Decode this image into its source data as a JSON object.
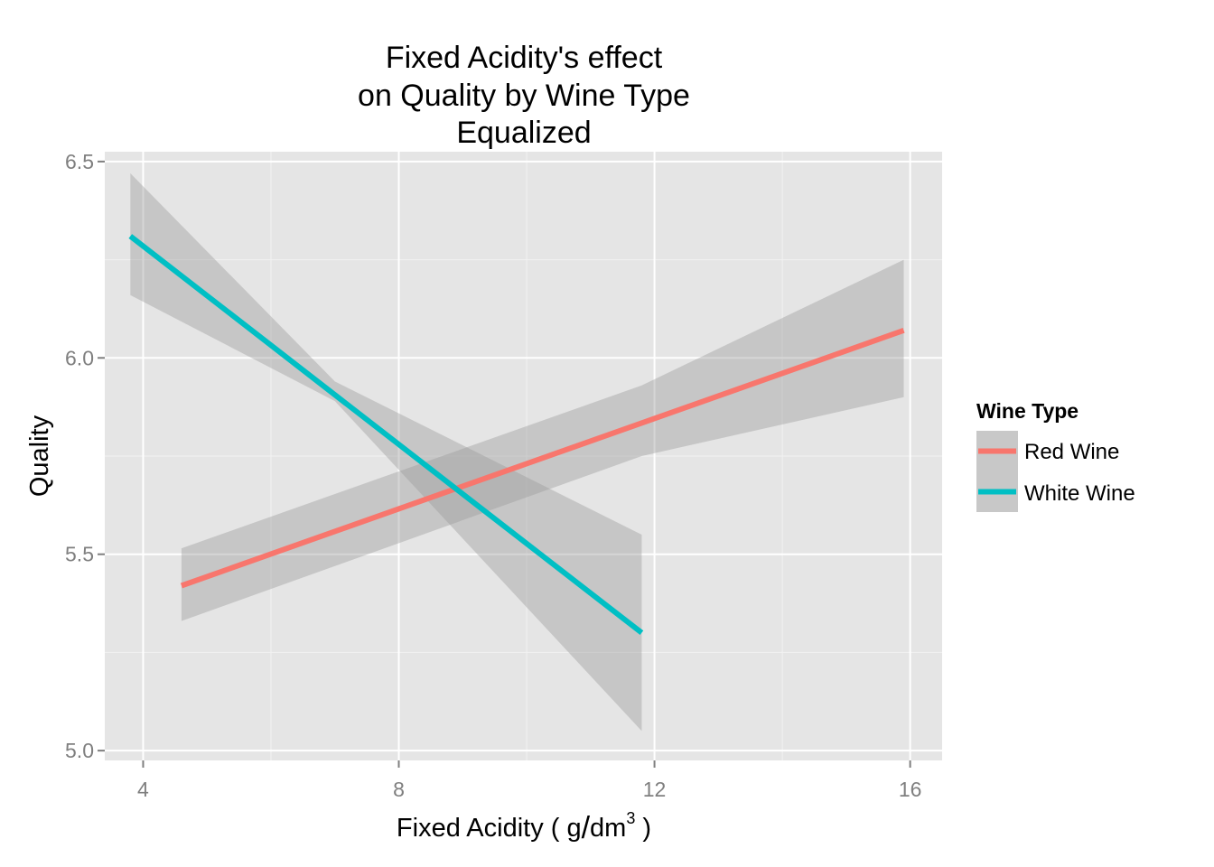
{
  "chart_data": {
    "type": "line",
    "title_lines": [
      "Fixed Acidity's effect",
      "on Quality by Wine Type",
      "Equalized"
    ],
    "xlabel_prefix": "Fixed Acidity ( g",
    "xlabel_slash": "/",
    "xlabel_unit": "dm",
    "xlabel_sup": "3",
    "xlabel_suffix": " )",
    "ylabel": "Quality",
    "xlim": [
      3.4,
      16.5
    ],
    "ylim": [
      4.975,
      6.525
    ],
    "x_ticks": [
      4,
      8,
      12,
      16
    ],
    "x_tick_labels": [
      "4",
      "8",
      "12",
      "16"
    ],
    "y_ticks": [
      5.0,
      5.5,
      6.0,
      6.5
    ],
    "y_tick_labels": [
      "5.0",
      "5.5",
      "6.0",
      "6.5"
    ],
    "grid": true,
    "background": "#e5e5e5",
    "ribbon_color": "#999999",
    "legend": {
      "title": "Wine Type",
      "position": "right"
    },
    "series": [
      {
        "name": "Red Wine",
        "color": "#f8766d",
        "x": [
          4.6,
          15.9
        ],
        "y": [
          5.42,
          6.07
        ],
        "ribbon": {
          "x": [
            4.6,
            11.8,
            15.9
          ],
          "lower": [
            5.33,
            5.75,
            5.9
          ],
          "upper": [
            5.515,
            5.93,
            6.25
          ]
        }
      },
      {
        "name": "White Wine",
        "color": "#00bfc4",
        "x": [
          3.8,
          11.8
        ],
        "y": [
          6.31,
          5.3
        ],
        "ribbon": {
          "x": [
            3.8,
            7.0,
            11.8
          ],
          "lower": [
            6.16,
            5.89,
            5.05
          ],
          "upper": [
            6.47,
            5.94,
            5.55
          ]
        }
      }
    ]
  }
}
